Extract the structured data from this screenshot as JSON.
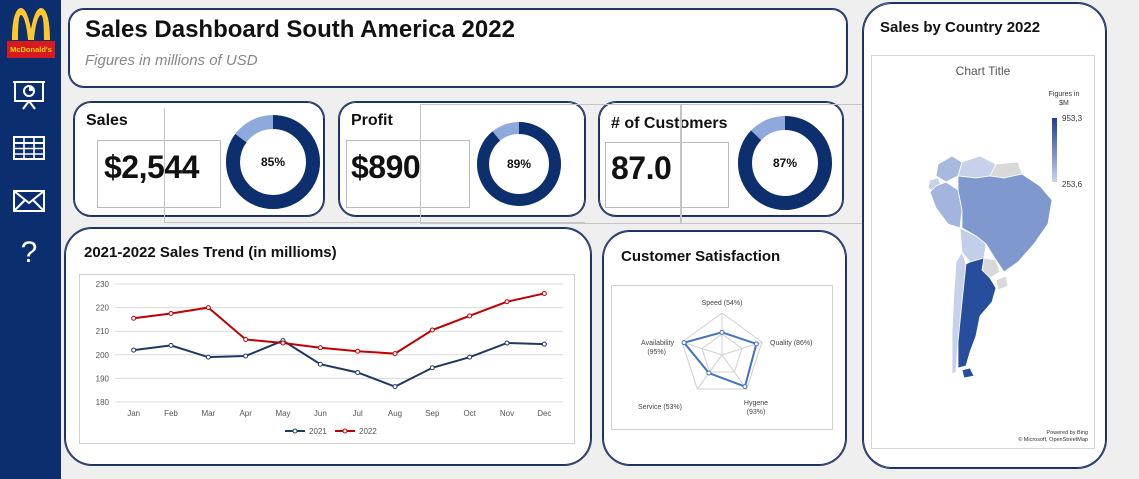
{
  "brand": {
    "logo_text": "McDonald's"
  },
  "sidebar": {
    "icons": [
      "presentation-icon",
      "table-icon",
      "mail-icon",
      "help-icon"
    ]
  },
  "header": {
    "title": "Sales Dashboard South America 2022",
    "subtitle": "Figures in millions of USD"
  },
  "kpis": [
    {
      "label": "Sales",
      "value": "$2,544",
      "percent": 85,
      "percent_label": "85%"
    },
    {
      "label": "Profit",
      "value": "$890",
      "percent": 89,
      "percent_label": "89%"
    },
    {
      "label": "# of Customers",
      "value": "87.0",
      "percent": 87,
      "percent_label": "87%"
    }
  ],
  "trend": {
    "title": "2021-2022 Sales Trend (in millioms)"
  },
  "satisfaction": {
    "title": "Customer Satisfaction"
  },
  "map": {
    "title": "Sales by Country 2022",
    "chart_title": "Chart Title",
    "legend_title_1": "Figures in",
    "legend_title_2": "$M",
    "legend_max": "953,3",
    "legend_min": "253,6",
    "credit_1": "Powered by Bing",
    "credit_2": "© Microsoft, OpenStreetMap"
  },
  "colors": {
    "navy": "#0b2e6f",
    "donut_dark": "#0e2f6e",
    "donut_light": "#8ea9db",
    "line_2021": "#1f3864",
    "line_2022": "#c00000",
    "radar": "#4472c4"
  },
  "chart_data": [
    {
      "type": "line",
      "title": "2021-2022 Sales Trend (in millioms)",
      "categories": [
        "Jan",
        "Feb",
        "Mar",
        "Apr",
        "May",
        "Jun",
        "Jul",
        "Aug",
        "Sep",
        "Oct",
        "Nov",
        "Dec"
      ],
      "series": [
        {
          "name": "2021",
          "values": [
            202,
            204,
            199,
            199.5,
            206,
            196,
            192.5,
            186.5,
            194.5,
            199,
            205,
            204.5
          ]
        },
        {
          "name": "2022",
          "values": [
            215.5,
            217.5,
            220,
            206.5,
            205,
            203,
            201.5,
            200.5,
            210.5,
            216.5,
            222.5,
            226
          ]
        }
      ],
      "ylim": [
        180,
        230
      ],
      "yticks": [
        180,
        190,
        200,
        210,
        220,
        230
      ],
      "legend": "bottom"
    },
    {
      "type": "radar",
      "title": "Customer Satisfaction",
      "axes": [
        {
          "name": "Speed",
          "label_1": "Speed (54%)",
          "label_2": "",
          "value": 54
        },
        {
          "name": "Quality",
          "label_1": "Quality (86%)",
          "label_2": "",
          "value": 86
        },
        {
          "name": "Hygene",
          "label_1": "Hygene",
          "label_2": "(93%)",
          "value": 93
        },
        {
          "name": "Service",
          "label_1": "Service (53%)",
          "label_2": "",
          "value": 53
        },
        {
          "name": "Availability",
          "label_1": "Availability",
          "label_2": "(95%)",
          "value": 95
        }
      ],
      "max": 100
    },
    {
      "type": "map",
      "title": "Chart Title",
      "region": "South America",
      "value_range": [
        253.6,
        953.3
      ]
    }
  ]
}
